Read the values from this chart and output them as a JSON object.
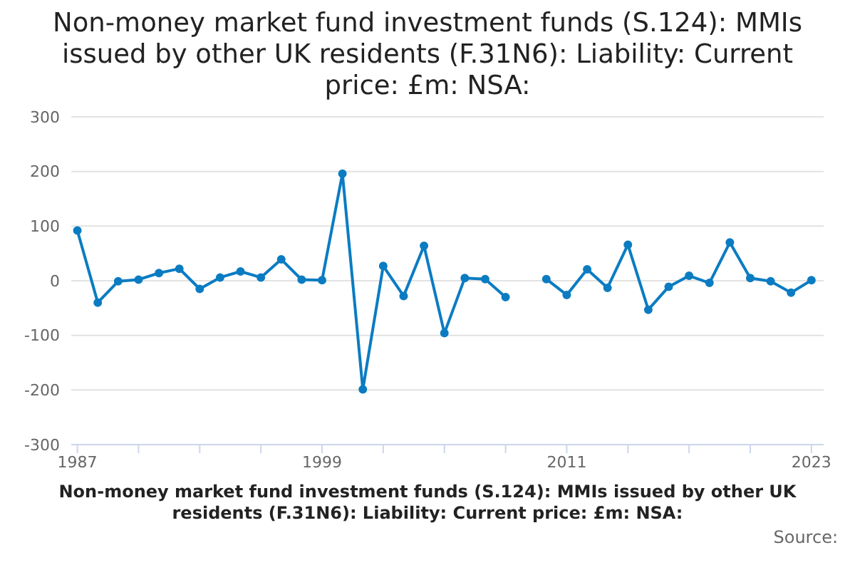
{
  "chart_data": {
    "type": "line",
    "title": "Non-money market fund investment funds (S.124): MMIs issued by other UK residents (F.31N6): Liability: Current price: £m: NSA:",
    "xlabel": "Non-money market fund investment funds (S.124): MMIs issued by other UK residents (F.31N6): Liability: Current price: £m: NSA:",
    "annotations": [
      "Source:"
    ],
    "x": [
      1987,
      1988,
      1989,
      1990,
      1991,
      1992,
      1993,
      1994,
      1995,
      1996,
      1997,
      1998,
      1999,
      2000,
      2001,
      2002,
      2003,
      2004,
      2005,
      2006,
      2007,
      2008,
      2009,
      2010,
      2011,
      2012,
      2013,
      2014,
      2015,
      2016,
      2017,
      2018,
      2019,
      2020,
      2021,
      2022,
      2023
    ],
    "series": [
      {
        "color": "#0b7cc2",
        "values": [
          92,
          -40,
          -1,
          2,
          14,
          22,
          -15,
          6,
          17,
          6,
          39,
          2,
          1,
          196,
          -199,
          27,
          -28,
          64,
          -96,
          5,
          3,
          -30,
          null,
          3,
          -26,
          21,
          -13,
          66,
          -53,
          -11,
          9,
          -4,
          70,
          5,
          -1,
          -22,
          1
        ]
      }
    ],
    "xlim": [
      1986.7,
      2023.6
    ],
    "xticks": [
      1987,
      {
        "value": 1990,
        "label": null
      },
      {
        "value": 1993,
        "label": null
      },
      {
        "value": 1996,
        "label": null
      },
      1999,
      {
        "value": 2002,
        "label": null
      },
      {
        "value": 2005,
        "label": null
      },
      {
        "value": 2008,
        "label": null
      },
      2011,
      {
        "value": 2014,
        "label": null
      },
      {
        "value": 2017,
        "label": null
      },
      {
        "value": 2020,
        "label": null
      },
      2023
    ],
    "ylim": [
      -300,
      300
    ],
    "yticks": [
      -300,
      -200,
      -100,
      0,
      100,
      200,
      300
    ],
    "grid": "y",
    "legend": false,
    "marker": "circle",
    "line_style": "solid"
  }
}
